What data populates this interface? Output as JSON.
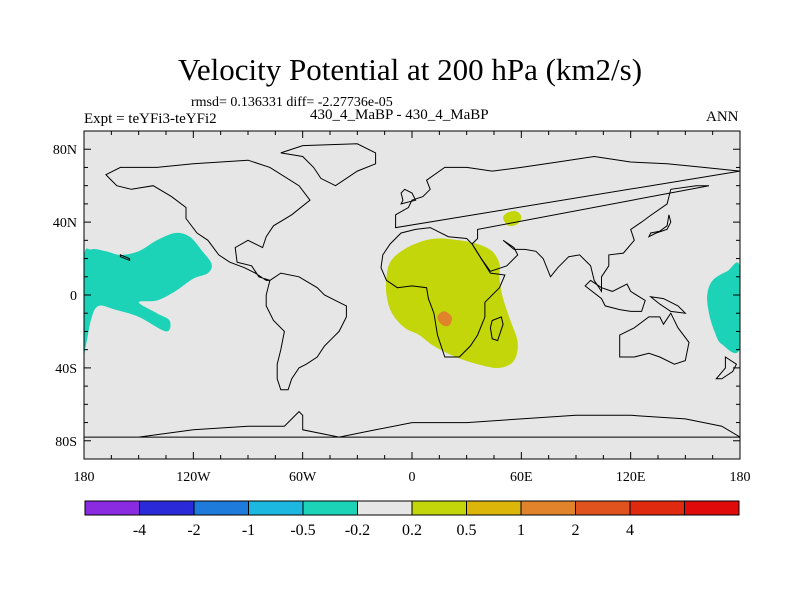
{
  "title": "Velocity Potential at 200 hPa (km2/s)",
  "stats_text": "rmsd= 0.136331 diff= -2.27736e-05",
  "left_label": "Expt = teYFi3-teYFi2",
  "center_label": "430_4_MaBP - 430_4_MaBP",
  "right_label": "ANN",
  "colors": {
    "background": "#e6e6e6",
    "green": "#c2d60a",
    "teal": "#1cd3b7",
    "orange": "#e0832a",
    "coast": "#000000"
  },
  "chart_data": {
    "type": "contour-map",
    "title": "Velocity Potential at 200 hPa (km2/s)",
    "x_axis": {
      "range": [
        -180,
        180
      ],
      "ticks": [
        -180,
        -120,
        -60,
        0,
        60,
        120,
        180
      ],
      "tick_labels": [
        "180",
        "120W",
        "60W",
        "0",
        "60E",
        "120E",
        "180"
      ]
    },
    "y_axis": {
      "range": [
        -90,
        90
      ],
      "ticks": [
        80,
        40,
        0,
        -40,
        -80
      ],
      "tick_labels": [
        "80N",
        "40N",
        "0",
        "40S",
        "80S"
      ]
    },
    "colorbar": {
      "colors": [
        "#8a2be2",
        "#2a2ad8",
        "#1e7bdc",
        "#1cb8e0",
        "#1cd3b7",
        "#e6e6e6",
        "#c2d60a",
        "#ddb60a",
        "#e0832a",
        "#e0531e",
        "#e02a10",
        "#e00a0a"
      ],
      "boundaries": [
        -4,
        -2,
        -1,
        -0.5,
        -0.2,
        0.2,
        0.5,
        1,
        2,
        4
      ],
      "boundary_labels": [
        "-4",
        "-2",
        "-1",
        "-0.5",
        "-0.2",
        "0.2",
        "0.5",
        "1",
        "2",
        "4"
      ]
    },
    "regions": [
      {
        "name": "africa-positive",
        "level": "0.2 to 0.5",
        "color": "#c2d60a",
        "lonlat": [
          [
            -14,
            10
          ],
          [
            -12,
            18
          ],
          [
            -6,
            24
          ],
          [
            4,
            29
          ],
          [
            14,
            31
          ],
          [
            26,
            30
          ],
          [
            36,
            28
          ],
          [
            44,
            24
          ],
          [
            48,
            17
          ],
          [
            48,
            9
          ],
          [
            50,
            -2
          ],
          [
            54,
            -14
          ],
          [
            58,
            -26
          ],
          [
            56,
            -36
          ],
          [
            48,
            -40
          ],
          [
            36,
            -38
          ],
          [
            24,
            -34
          ],
          [
            12,
            -28
          ],
          [
            4,
            -22
          ],
          [
            -4,
            -18
          ],
          [
            -11,
            -10
          ],
          [
            -14,
            0
          ]
        ]
      },
      {
        "name": "arabia-positive",
        "level": "0.2 to 0.5",
        "color": "#c2d60a",
        "lonlat": [
          [
            50,
            42
          ],
          [
            52,
            45
          ],
          [
            57,
            46
          ],
          [
            60,
            43
          ],
          [
            58,
            39
          ],
          [
            53,
            38
          ]
        ]
      },
      {
        "name": "africa-core",
        "level": "0.5 to 1",
        "color": "#e0832a",
        "lonlat": [
          [
            14,
            -12
          ],
          [
            17,
            -9
          ],
          [
            20,
            -10
          ],
          [
            22,
            -13
          ],
          [
            20,
            -17
          ],
          [
            16,
            -16
          ]
        ]
      },
      {
        "name": "pacific-negative",
        "level": "-0.5 to -0.2",
        "color": "#1cd3b7",
        "lonlat": [
          [
            -180,
            20
          ],
          [
            -176,
            25
          ],
          [
            -168,
            24
          ],
          [
            -160,
            22
          ],
          [
            -150,
            24
          ],
          [
            -140,
            30
          ],
          [
            -130,
            34
          ],
          [
            -122,
            32
          ],
          [
            -115,
            24
          ],
          [
            -110,
            17
          ],
          [
            -112,
            12
          ],
          [
            -120,
            9
          ],
          [
            -130,
            2
          ],
          [
            -140,
            -3
          ],
          [
            -150,
            -4
          ],
          [
            -140,
            -10
          ],
          [
            -133,
            -14
          ],
          [
            -135,
            -20
          ],
          [
            -150,
            -12
          ],
          [
            -163,
            -8
          ],
          [
            -172,
            -6
          ],
          [
            -176,
            -13
          ],
          [
            -179,
            -28
          ],
          [
            -180,
            -28
          ]
        ]
      },
      {
        "name": "maritime-negative",
        "level": "-0.5 to -0.2",
        "color": "#1cd3b7",
        "lonlat": [
          [
            180,
            15
          ],
          [
            173,
            13
          ],
          [
            165,
            8
          ],
          [
            162,
            0
          ],
          [
            163,
            -10
          ],
          [
            166,
            -20
          ],
          [
            170,
            -27
          ],
          [
            180,
            -29
          ]
        ]
      }
    ]
  }
}
